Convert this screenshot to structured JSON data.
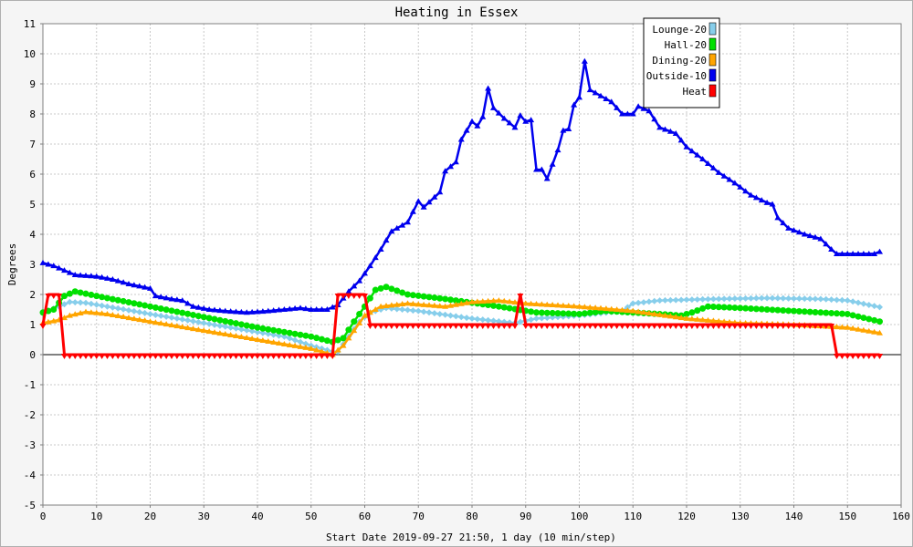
{
  "chart_data": {
    "type": "line",
    "title": "Heating in Essex",
    "ylabel": "Degrees",
    "xlabel": "Start Date 2019-09-27 21:50, 1 day (10 min/step)",
    "xlim": [
      0,
      160
    ],
    "ylim": [
      -5,
      11
    ],
    "xticks": [
      0,
      10,
      20,
      30,
      40,
      50,
      60,
      70,
      80,
      90,
      100,
      110,
      120,
      130,
      140,
      150,
      160
    ],
    "yticks": [
      -5,
      -4,
      -3,
      -2,
      -1,
      0,
      1,
      2,
      3,
      4,
      5,
      6,
      7,
      8,
      9,
      10,
      11
    ],
    "grid": true,
    "legend_position": "top-right",
    "series": [
      {
        "name": "Lounge-20",
        "color": "#87ceeb",
        "marker": "diamond",
        "points": [
          [
            0,
            1.4
          ],
          [
            3,
            1.6
          ],
          [
            5,
            1.75
          ],
          [
            8,
            1.72
          ],
          [
            12,
            1.6
          ],
          [
            20,
            1.35
          ],
          [
            30,
            1.05
          ],
          [
            40,
            0.75
          ],
          [
            45,
            0.6
          ],
          [
            50,
            0.3
          ],
          [
            54,
            0.1
          ],
          [
            55,
            0.1
          ],
          [
            57,
            0.6
          ],
          [
            59,
            1.1
          ],
          [
            61,
            1.4
          ],
          [
            64,
            1.55
          ],
          [
            70,
            1.45
          ],
          [
            80,
            1.2
          ],
          [
            88,
            1.05
          ],
          [
            92,
            1.2
          ],
          [
            100,
            1.3
          ],
          [
            108,
            1.45
          ],
          [
            110,
            1.7
          ],
          [
            115,
            1.8
          ],
          [
            125,
            1.85
          ],
          [
            135,
            1.88
          ],
          [
            145,
            1.85
          ],
          [
            150,
            1.8
          ],
          [
            156,
            1.58
          ]
        ]
      },
      {
        "name": "Hall-20",
        "color": "#00e000",
        "marker": "circle",
        "points": [
          [
            0,
            1.4
          ],
          [
            2,
            1.5
          ],
          [
            4,
            1.95
          ],
          [
            6,
            2.1
          ],
          [
            10,
            1.95
          ],
          [
            20,
            1.6
          ],
          [
            30,
            1.25
          ],
          [
            40,
            0.9
          ],
          [
            50,
            0.6
          ],
          [
            54,
            0.42
          ],
          [
            56,
            0.55
          ],
          [
            58,
            1.1
          ],
          [
            60,
            1.6
          ],
          [
            62,
            2.15
          ],
          [
            64,
            2.25
          ],
          [
            68,
            2.0
          ],
          [
            75,
            1.85
          ],
          [
            85,
            1.6
          ],
          [
            92,
            1.4
          ],
          [
            100,
            1.35
          ],
          [
            105,
            1.45
          ],
          [
            110,
            1.4
          ],
          [
            115,
            1.35
          ],
          [
            119,
            1.3
          ],
          [
            121,
            1.4
          ],
          [
            124,
            1.6
          ],
          [
            130,
            1.55
          ],
          [
            140,
            1.45
          ],
          [
            150,
            1.35
          ],
          [
            156,
            1.1
          ]
        ]
      },
      {
        "name": "Dining-20",
        "color": "#ffa500",
        "marker": "triangle-up",
        "points": [
          [
            0,
            1.05
          ],
          [
            3,
            1.15
          ],
          [
            5,
            1.3
          ],
          [
            8,
            1.42
          ],
          [
            12,
            1.35
          ],
          [
            20,
            1.1
          ],
          [
            30,
            0.8
          ],
          [
            40,
            0.5
          ],
          [
            50,
            0.2
          ],
          [
            54,
            0.0
          ],
          [
            56,
            0.3
          ],
          [
            58,
            0.8
          ],
          [
            60,
            1.3
          ],
          [
            63,
            1.6
          ],
          [
            68,
            1.7
          ],
          [
            75,
            1.6
          ],
          [
            80,
            1.75
          ],
          [
            85,
            1.8
          ],
          [
            90,
            1.7
          ],
          [
            100,
            1.6
          ],
          [
            110,
            1.45
          ],
          [
            120,
            1.2
          ],
          [
            130,
            1.05
          ],
          [
            140,
            1.0
          ],
          [
            150,
            0.9
          ],
          [
            156,
            0.72
          ]
        ]
      },
      {
        "name": "Outside-10",
        "color": "#0000ee",
        "marker": "triangle-up",
        "points": [
          [
            0,
            3.05
          ],
          [
            2,
            2.95
          ],
          [
            4,
            2.8
          ],
          [
            6,
            2.65
          ],
          [
            10,
            2.6
          ],
          [
            13,
            2.5
          ],
          [
            16,
            2.35
          ],
          [
            20,
            2.2
          ],
          [
            21,
            1.95
          ],
          [
            24,
            1.85
          ],
          [
            26,
            1.8
          ],
          [
            28,
            1.6
          ],
          [
            31,
            1.5
          ],
          [
            34,
            1.45
          ],
          [
            38,
            1.4
          ],
          [
            42,
            1.45
          ],
          [
            45,
            1.5
          ],
          [
            48,
            1.55
          ],
          [
            50,
            1.5
          ],
          [
            53,
            1.5
          ],
          [
            55,
            1.65
          ],
          [
            57,
            2.1
          ],
          [
            59,
            2.45
          ],
          [
            61,
            2.95
          ],
          [
            63,
            3.5
          ],
          [
            65,
            4.1
          ],
          [
            68,
            4.4
          ],
          [
            70,
            5.1
          ],
          [
            71,
            4.9
          ],
          [
            74,
            5.4
          ],
          [
            75,
            6.1
          ],
          [
            77,
            6.4
          ],
          [
            78,
            7.15
          ],
          [
            80,
            7.75
          ],
          [
            81,
            7.6
          ],
          [
            82,
            7.9
          ],
          [
            83,
            8.85
          ],
          [
            84,
            8.2
          ],
          [
            86,
            7.85
          ],
          [
            88,
            7.55
          ],
          [
            89,
            7.95
          ],
          [
            90,
            7.75
          ],
          [
            91,
            7.8
          ],
          [
            92,
            6.15
          ],
          [
            93,
            6.15
          ],
          [
            94,
            5.85
          ],
          [
            96,
            6.8
          ],
          [
            97,
            7.45
          ],
          [
            98,
            7.5
          ],
          [
            99,
            8.3
          ],
          [
            100,
            8.55
          ],
          [
            101,
            9.75
          ],
          [
            102,
            8.8
          ],
          [
            104,
            8.6
          ],
          [
            106,
            8.4
          ],
          [
            108,
            8.0
          ],
          [
            110,
            8.0
          ],
          [
            111,
            8.25
          ],
          [
            113,
            8.1
          ],
          [
            115,
            7.55
          ],
          [
            118,
            7.35
          ],
          [
            120,
            6.9
          ],
          [
            123,
            6.5
          ],
          [
            126,
            6.05
          ],
          [
            129,
            5.7
          ],
          [
            132,
            5.3
          ],
          [
            135,
            5.05
          ],
          [
            136,
            5.0
          ],
          [
            137,
            4.55
          ],
          [
            139,
            4.2
          ],
          [
            142,
            4.0
          ],
          [
            145,
            3.85
          ],
          [
            147,
            3.5
          ],
          [
            148,
            3.35
          ],
          [
            150,
            3.35
          ],
          [
            155,
            3.35
          ],
          [
            156,
            3.42
          ]
        ]
      },
      {
        "name": "Heat",
        "color": "#ff0000",
        "marker": "triangle-down",
        "points": [
          [
            0,
            1
          ],
          [
            1,
            2
          ],
          [
            2,
            2
          ],
          [
            3,
            2
          ],
          [
            4,
            0
          ],
          [
            54,
            0
          ],
          [
            55,
            2
          ],
          [
            60,
            2
          ],
          [
            61,
            1
          ],
          [
            88,
            1
          ],
          [
            89,
            2
          ],
          [
            90,
            1
          ],
          [
            147,
            1
          ],
          [
            148,
            0
          ],
          [
            156,
            0
          ]
        ]
      }
    ]
  }
}
